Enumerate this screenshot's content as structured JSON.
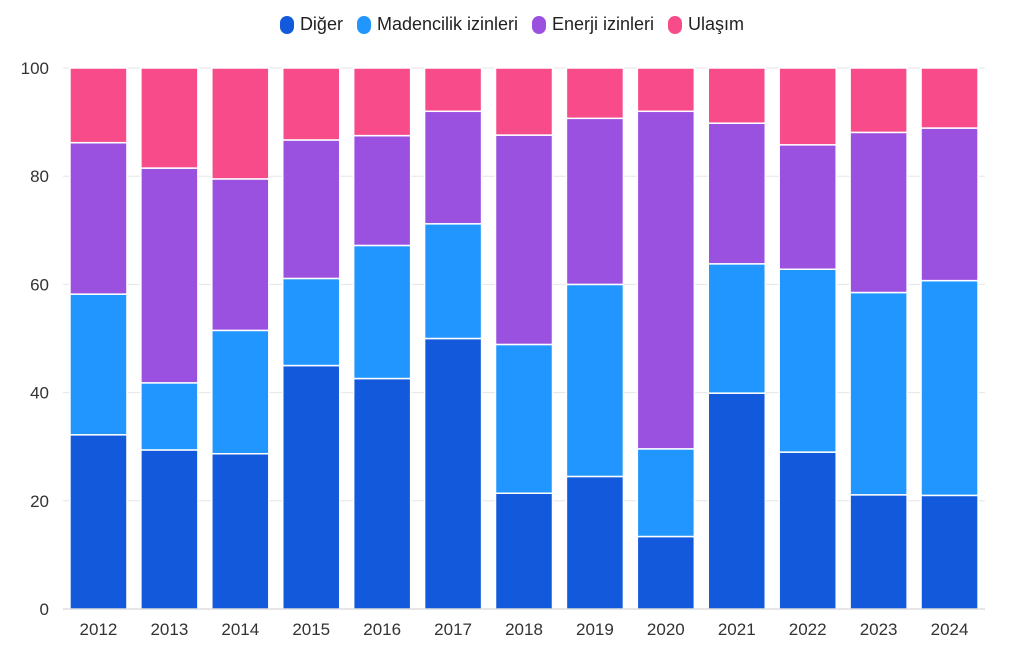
{
  "chart_data": {
    "type": "bar",
    "stacked": true,
    "categories": [
      "2012",
      "2013",
      "2014",
      "2015",
      "2016",
      "2017",
      "2018",
      "2019",
      "2020",
      "2021",
      "2022",
      "2023",
      "2024"
    ],
    "series": [
      {
        "name": "Diğer",
        "color": "#1259DC",
        "values": [
          32.2,
          29.4,
          28.7,
          45.0,
          42.6,
          50.0,
          21.4,
          24.5,
          13.4,
          39.9,
          29.0,
          21.1,
          21.0
        ]
      },
      {
        "name": "Madencilik izinleri",
        "color": "#2196FF",
        "values": [
          26.0,
          12.4,
          22.8,
          16.1,
          24.6,
          21.2,
          27.5,
          35.5,
          16.2,
          23.9,
          33.8,
          37.4,
          39.7
        ]
      },
      {
        "name": "Enerji izinleri",
        "color": "#9B51E0",
        "values": [
          28.0,
          39.7,
          28.0,
          25.6,
          20.3,
          20.8,
          38.7,
          30.7,
          62.4,
          26.0,
          23.0,
          29.6,
          28.2
        ]
      },
      {
        "name": "Ulaşım",
        "color": "#F74C89",
        "values": [
          13.8,
          18.5,
          20.5,
          13.3,
          12.5,
          8.0,
          12.4,
          9.3,
          8.0,
          10.2,
          14.2,
          11.9,
          11.1
        ]
      }
    ],
    "yticks": [
      "0",
      "20",
      "40",
      "60",
      "80",
      "100"
    ],
    "ylim": [
      0,
      100
    ],
    "grid": true,
    "legend_position": "top-center",
    "title": "",
    "xlabel": "",
    "ylabel": ""
  }
}
